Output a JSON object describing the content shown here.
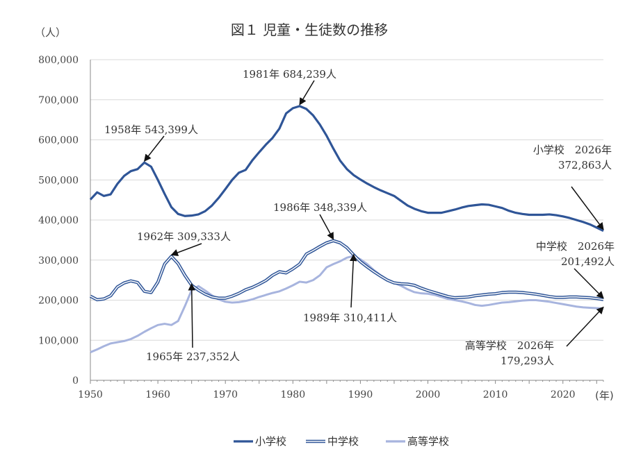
{
  "chart_data": {
    "type": "line",
    "title": "図１ 児童・生徒数の推移",
    "ylabel": "（人）",
    "xlabel": "(年)",
    "ylim": [
      0,
      800000
    ],
    "xlim": [
      1950,
      2026
    ],
    "y_ticks": [
      0,
      100000,
      200000,
      300000,
      400000,
      500000,
      600000,
      700000,
      800000
    ],
    "y_tick_labels": [
      "0",
      "100,000",
      "200,000",
      "300,000",
      "400,000",
      "500,000",
      "600,000",
      "700,000",
      "800,000"
    ],
    "x_ticks": [
      1950,
      1960,
      1970,
      1980,
      1990,
      2000,
      2010,
      2020
    ],
    "x_tick_labels": [
      "1950",
      "1960",
      "1970",
      "1980",
      "1990",
      "2000",
      "2010",
      "2020"
    ],
    "grid": "horizontal",
    "legend_position": "bottom",
    "series": [
      {
        "name": "小学校",
        "color": "#2f5597",
        "style": "solid",
        "points": [
          [
            1950,
            451000
          ],
          [
            1951,
            469000
          ],
          [
            1952,
            460000
          ],
          [
            1953,
            464000
          ],
          [
            1954,
            490000
          ],
          [
            1955,
            510000
          ],
          [
            1956,
            522000
          ],
          [
            1957,
            527000
          ],
          [
            1958,
            543399
          ],
          [
            1959,
            533000
          ],
          [
            1960,
            500000
          ],
          [
            1961,
            465000
          ],
          [
            1962,
            432000
          ],
          [
            1963,
            415000
          ],
          [
            1964,
            410000
          ],
          [
            1965,
            411000
          ],
          [
            1966,
            414000
          ],
          [
            1967,
            422000
          ],
          [
            1968,
            436000
          ],
          [
            1969,
            455000
          ],
          [
            1970,
            477000
          ],
          [
            1971,
            500000
          ],
          [
            1972,
            518000
          ],
          [
            1973,
            525000
          ],
          [
            1974,
            549000
          ],
          [
            1975,
            569000
          ],
          [
            1976,
            588000
          ],
          [
            1977,
            605000
          ],
          [
            1978,
            628000
          ],
          [
            1979,
            666000
          ],
          [
            1980,
            679000
          ],
          [
            1981,
            684239
          ],
          [
            1982,
            677000
          ],
          [
            1983,
            661000
          ],
          [
            1984,
            638000
          ],
          [
            1985,
            610000
          ],
          [
            1986,
            578000
          ],
          [
            1987,
            548000
          ],
          [
            1988,
            527000
          ],
          [
            1989,
            512000
          ],
          [
            1990,
            501000
          ],
          [
            1991,
            491000
          ],
          [
            1992,
            482000
          ],
          [
            1993,
            474000
          ],
          [
            1994,
            467000
          ],
          [
            1995,
            460000
          ],
          [
            1996,
            448000
          ],
          [
            1997,
            436000
          ],
          [
            1998,
            428000
          ],
          [
            1999,
            422000
          ],
          [
            2000,
            418000
          ],
          [
            2001,
            418000
          ],
          [
            2002,
            418000
          ],
          [
            2003,
            422000
          ],
          [
            2004,
            426000
          ],
          [
            2005,
            431000
          ],
          [
            2006,
            435000
          ],
          [
            2007,
            437000
          ],
          [
            2008,
            439000
          ],
          [
            2009,
            438000
          ],
          [
            2010,
            434000
          ],
          [
            2011,
            430000
          ],
          [
            2012,
            423000
          ],
          [
            2013,
            418000
          ],
          [
            2014,
            415000
          ],
          [
            2015,
            413000
          ],
          [
            2016,
            413000
          ],
          [
            2017,
            413000
          ],
          [
            2018,
            414000
          ],
          [
            2019,
            412000
          ],
          [
            2020,
            409000
          ],
          [
            2021,
            405000
          ],
          [
            2022,
            400000
          ],
          [
            2023,
            395000
          ],
          [
            2024,
            389000
          ],
          [
            2025,
            381000
          ],
          [
            2026,
            372863
          ]
        ]
      },
      {
        "name": "中学校",
        "color": "#2f5597",
        "style": "double",
        "points": [
          [
            1950,
            210000
          ],
          [
            1951,
            201000
          ],
          [
            1952,
            203000
          ],
          [
            1953,
            211000
          ],
          [
            1954,
            233000
          ],
          [
            1955,
            243000
          ],
          [
            1956,
            248000
          ],
          [
            1957,
            244000
          ],
          [
            1958,
            222000
          ],
          [
            1959,
            219000
          ],
          [
            1960,
            245000
          ],
          [
            1961,
            290000
          ],
          [
            1962,
            309333
          ],
          [
            1963,
            291000
          ],
          [
            1964,
            262000
          ],
          [
            1965,
            237352
          ],
          [
            1966,
            225000
          ],
          [
            1967,
            215000
          ],
          [
            1968,
            208000
          ],
          [
            1969,
            205000
          ],
          [
            1970,
            205000
          ],
          [
            1971,
            210000
          ],
          [
            1972,
            217000
          ],
          [
            1973,
            226000
          ],
          [
            1974,
            232000
          ],
          [
            1975,
            240000
          ],
          [
            1976,
            249000
          ],
          [
            1977,
            262000
          ],
          [
            1978,
            271000
          ],
          [
            1979,
            268000
          ],
          [
            1980,
            278000
          ],
          [
            1981,
            290000
          ],
          [
            1982,
            315000
          ],
          [
            1983,
            324000
          ],
          [
            1984,
            334000
          ],
          [
            1985,
            343000
          ],
          [
            1986,
            348339
          ],
          [
            1987,
            343000
          ],
          [
            1988,
            331000
          ],
          [
            1989,
            313000
          ],
          [
            1990,
            296000
          ],
          [
            1991,
            283000
          ],
          [
            1992,
            271000
          ],
          [
            1993,
            260000
          ],
          [
            1994,
            250000
          ],
          [
            1995,
            243000
          ],
          [
            1996,
            241000
          ],
          [
            1997,
            240000
          ],
          [
            1998,
            237000
          ],
          [
            1999,
            230000
          ],
          [
            2000,
            224000
          ],
          [
            2001,
            219000
          ],
          [
            2002,
            214000
          ],
          [
            2003,
            209000
          ],
          [
            2004,
            206000
          ],
          [
            2005,
            207000
          ],
          [
            2006,
            208000
          ],
          [
            2007,
            211000
          ],
          [
            2008,
            213000
          ],
          [
            2009,
            215000
          ],
          [
            2010,
            216000
          ],
          [
            2011,
            219000
          ],
          [
            2012,
            220000
          ],
          [
            2013,
            220000
          ],
          [
            2014,
            219000
          ],
          [
            2015,
            217000
          ],
          [
            2016,
            215000
          ],
          [
            2017,
            212000
          ],
          [
            2018,
            209000
          ],
          [
            2019,
            207000
          ],
          [
            2020,
            207000
          ],
          [
            2021,
            208000
          ],
          [
            2022,
            208000
          ],
          [
            2023,
            207000
          ],
          [
            2024,
            206000
          ],
          [
            2025,
            204000
          ],
          [
            2026,
            201492
          ]
        ]
      },
      {
        "name": "高等学校",
        "color": "#a7b4de",
        "style": "solid",
        "points": [
          [
            1950,
            70000
          ],
          [
            1951,
            77000
          ],
          [
            1952,
            85000
          ],
          [
            1953,
            92000
          ],
          [
            1954,
            95000
          ],
          [
            1955,
            98000
          ],
          [
            1956,
            103000
          ],
          [
            1957,
            111000
          ],
          [
            1958,
            121000
          ],
          [
            1959,
            130000
          ],
          [
            1960,
            138000
          ],
          [
            1961,
            141000
          ],
          [
            1962,
            138000
          ],
          [
            1963,
            148000
          ],
          [
            1964,
            185000
          ],
          [
            1965,
            225000
          ],
          [
            1966,
            235000
          ],
          [
            1967,
            224000
          ],
          [
            1968,
            212000
          ],
          [
            1969,
            202000
          ],
          [
            1970,
            196000
          ],
          [
            1971,
            194000
          ],
          [
            1972,
            195000
          ],
          [
            1973,
            198000
          ],
          [
            1974,
            202000
          ],
          [
            1975,
            208000
          ],
          [
            1976,
            213000
          ],
          [
            1977,
            218000
          ],
          [
            1978,
            222000
          ],
          [
            1979,
            229000
          ],
          [
            1980,
            237000
          ],
          [
            1981,
            246000
          ],
          [
            1982,
            244000
          ],
          [
            1983,
            250000
          ],
          [
            1984,
            262000
          ],
          [
            1985,
            282000
          ],
          [
            1986,
            290000
          ],
          [
            1987,
            297000
          ],
          [
            1988,
            306000
          ],
          [
            1989,
            310411
          ],
          [
            1990,
            302000
          ],
          [
            1991,
            290000
          ],
          [
            1992,
            275000
          ],
          [
            1993,
            262000
          ],
          [
            1994,
            251000
          ],
          [
            1995,
            243000
          ],
          [
            1996,
            236000
          ],
          [
            1997,
            227000
          ],
          [
            1998,
            220000
          ],
          [
            1999,
            217000
          ],
          [
            2000,
            216000
          ],
          [
            2001,
            213000
          ],
          [
            2002,
            208000
          ],
          [
            2003,
            203000
          ],
          [
            2004,
            200000
          ],
          [
            2005,
            197000
          ],
          [
            2006,
            193000
          ],
          [
            2007,
            188000
          ],
          [
            2008,
            186000
          ],
          [
            2009,
            188000
          ],
          [
            2010,
            191000
          ],
          [
            2011,
            194000
          ],
          [
            2012,
            195000
          ],
          [
            2013,
            197000
          ],
          [
            2014,
            199000
          ],
          [
            2015,
            200000
          ],
          [
            2016,
            200000
          ],
          [
            2017,
            198000
          ],
          [
            2018,
            196000
          ],
          [
            2019,
            193000
          ],
          [
            2020,
            190000
          ],
          [
            2021,
            187000
          ],
          [
            2022,
            184000
          ],
          [
            2023,
            182000
          ],
          [
            2024,
            181000
          ],
          [
            2025,
            180000
          ],
          [
            2026,
            179293
          ]
        ]
      }
    ],
    "annotations": [
      {
        "lines": [
          "1958年 543,399人"
        ],
        "x": 1958,
        "y": 543399
      },
      {
        "lines": [
          "1981年 684,239人"
        ],
        "x": 1981,
        "y": 684239
      },
      {
        "lines": [
          "1962年 309,333人"
        ],
        "x": 1962,
        "y": 309333
      },
      {
        "lines": [
          "1965年 237,352人"
        ],
        "x": 1965,
        "y": 237352
      },
      {
        "lines": [
          "1986年 348,339人"
        ],
        "x": 1986,
        "y": 348339
      },
      {
        "lines": [
          "1989年 310,411人"
        ],
        "x": 1989,
        "y": 310411
      },
      {
        "lines": [
          "小学校　2026年",
          "372,863人"
        ],
        "x": 2026,
        "y": 372863
      },
      {
        "lines": [
          "中学校　2026年",
          "201,492人"
        ],
        "x": 2026,
        "y": 201492
      },
      {
        "lines": [
          "高等学校　2026年",
          "179,293人"
        ],
        "x": 2026,
        "y": 179293
      }
    ]
  }
}
